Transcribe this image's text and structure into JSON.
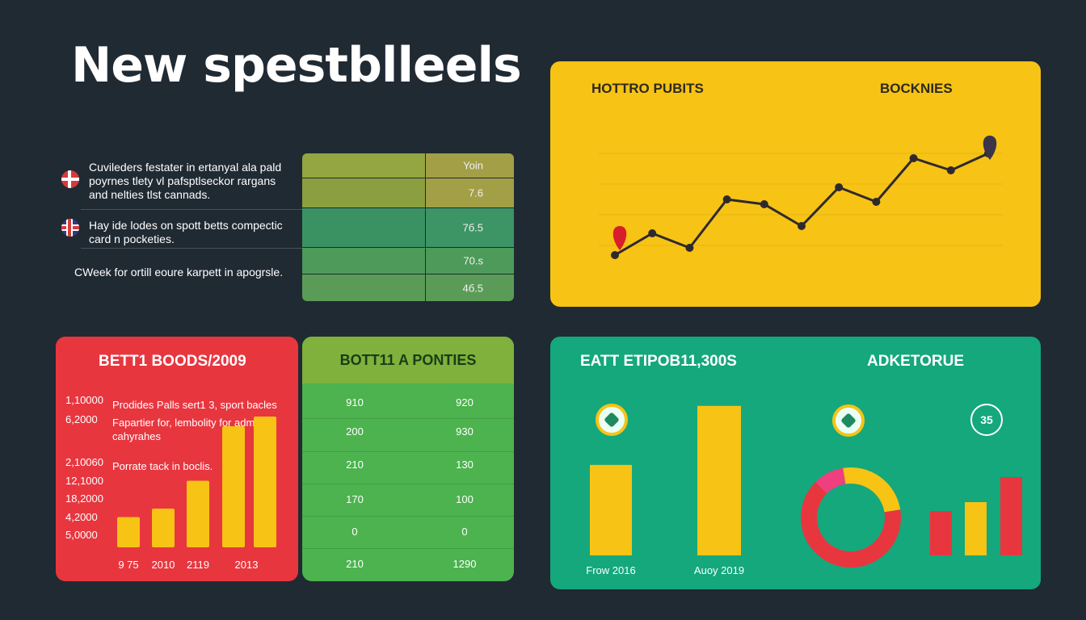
{
  "title": "New spestblleels",
  "info_list": {
    "items": [
      {
        "text_lines": [
          "Cuvileders festater in ertanyal ala pald",
          "poyrnes tlety vl pafsptlseckor rargans",
          "and nelties tlst cannads."
        ],
        "flag": "denmark-flag-icon"
      },
      {
        "text_lines": [
          "Hay ide lodes on spott betts compectic",
          "card n pocketies."
        ],
        "flag": "uk-flag-icon"
      },
      {
        "text_lines": [
          "CWeek for ortill eoure karpett in apogrsle."
        ],
        "flag": ""
      }
    ],
    "values": [
      "Yoin",
      "7.6",
      "7б.5",
      "70.s",
      "4б.5"
    ],
    "colors": [
      "#8fa33f",
      "#8fa33f",
      "#3a9262",
      "#4e9a5a",
      "#4e9a5a"
    ]
  },
  "line_card": {
    "heading_left": "HOTTRO PUBITS",
    "heading_right": "BOCKNIES"
  },
  "red_card": {
    "heading": "BETT1 BOODS/2009",
    "notes": [
      "Prodides Palls sert1 3, sport bacles",
      "Fapartier for, lembolity for admple",
      "cahyrahes",
      "Porrate tack in boclis."
    ]
  },
  "green_card": {
    "heading": "BOTT11 A PONTIES",
    "rows": [
      [
        "910",
        "920"
      ],
      [
        "200",
        "930"
      ],
      [
        "210",
        "130"
      ],
      [
        "170",
        "100"
      ],
      [
        "0",
        "0"
      ],
      [
        "210",
        "1290"
      ]
    ]
  },
  "teal_card": {
    "heading_left": "EATT ETIPOB11,300S",
    "heading_right": "ADKETORUE",
    "globe_text": "35",
    "bar_labels": [
      "Frow 2016",
      "Auoy 2019"
    ]
  },
  "chart_data": [
    {
      "type": "line",
      "x": [
        1,
        2,
        3,
        4,
        5,
        6,
        7,
        8,
        9,
        10,
        11
      ],
      "series": [
        {
          "values": [
            2,
            11,
            5,
            25,
            23,
            14,
            30,
            24,
            42,
            37,
            44
          ]
        }
      ],
      "start_marker_color": "#d81e2a",
      "end_marker_color": "#3a3548",
      "line_color": "#2e2a2c",
      "ylim": [
        0,
        50
      ],
      "grid": true
    },
    {
      "type": "bar",
      "categories": [
        "9 75",
        "2010",
        "2119",
        "",
        "2013"
      ],
      "values": [
        25,
        32,
        55,
        100,
        108
      ],
      "yticks": [
        "1,10000",
        "6,2000",
        "2,10060",
        "12,1000",
        "18,2000",
        "4,2000",
        "5,0000"
      ],
      "bar_color": "#f7c315",
      "ylim": [
        0,
        110
      ]
    },
    {
      "type": "bar",
      "categories": [
        "Frow 2016",
        "Auoy 2019"
      ],
      "values": [
        115,
        190
      ],
      "bar_color": "#f7c315",
      "ylim": [
        0,
        200
      ]
    },
    {
      "type": "pie",
      "donut": true,
      "values": [
        10,
        25,
        65
      ],
      "colors": [
        "#ef3f7e",
        "#f7c315",
        "#e8363f"
      ]
    },
    {
      "type": "bar",
      "categories": [
        "",
        "",
        ""
      ],
      "values": [
        55,
        66,
        97
      ],
      "colors": [
        "#e8363f",
        "#f7c315",
        "#e8363f"
      ],
      "ylim": [
        0,
        100
      ]
    }
  ]
}
